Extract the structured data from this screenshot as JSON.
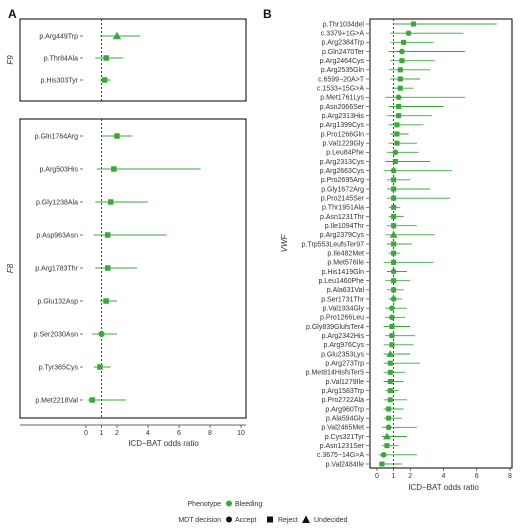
{
  "colors": {
    "accent": "#3aa83a",
    "ref": "#111111",
    "frame": "#000000"
  },
  "legend": {
    "phenotype_title": "Phenotype",
    "phenotype_item": "Bleeding",
    "mdt_title": "MDT decision",
    "accept": "Accept",
    "reject": "Reject",
    "undecided": "Undecided"
  },
  "chart_data": [
    {
      "type": "scatter",
      "panel": "A",
      "xlabel": "ICD−BAT odds ratio",
      "xlim": [
        0,
        10
      ],
      "xticks": [
        0,
        1,
        2,
        4,
        6,
        8,
        10
      ],
      "reference_line": 1,
      "groups": [
        {
          "name": "F9",
          "rows": [
            {
              "label": "p.Arg449Trp",
              "or": 2.0,
              "lo": 0.9,
              "hi": 3.5,
              "decision": "Undecided"
            },
            {
              "label": "p.Thr84Ala",
              "or": 1.3,
              "lo": 0.6,
              "hi": 2.4,
              "decision": "Reject"
            },
            {
              "label": "p.His303Tyr",
              "or": 1.2,
              "lo": 0.9,
              "hi": 1.6,
              "decision": "Reject"
            }
          ]
        },
        {
          "name": "F8",
          "rows": [
            {
              "label": "p.Gln1764Arg",
              "or": 2.0,
              "lo": 1.0,
              "hi": 3.0,
              "decision": "Reject"
            },
            {
              "label": "p.Arg503His",
              "or": 1.8,
              "lo": 0.7,
              "hi": 7.4,
              "decision": "Reject"
            },
            {
              "label": "p.Gly1238Ala",
              "or": 1.6,
              "lo": 0.6,
              "hi": 4.0,
              "decision": "Reject"
            },
            {
              "label": "p.Asp963Asn",
              "or": 1.4,
              "lo": 0.5,
              "hi": 5.2,
              "decision": "Reject"
            },
            {
              "label": "p.Arg1783Thr",
              "or": 1.4,
              "lo": 0.6,
              "hi": 3.3,
              "decision": "Reject"
            },
            {
              "label": "p.Glu132Asp",
              "or": 1.3,
              "lo": 0.9,
              "hi": 2.0,
              "decision": "Reject"
            },
            {
              "label": "p.Ser2030Asn",
              "or": 1.0,
              "lo": 0.4,
              "hi": 2.0,
              "decision": "Accept"
            },
            {
              "label": "p.Tyr365Cys",
              "or": 0.9,
              "lo": 0.5,
              "hi": 1.6,
              "decision": "Reject"
            },
            {
              "label": "p.Met2218Val",
              "or": 0.4,
              "lo": 0.1,
              "hi": 2.6,
              "decision": "Reject"
            }
          ]
        }
      ]
    },
    {
      "type": "scatter",
      "panel": "B",
      "group": "VWF",
      "xlabel": "ICD−BAT odds ratio",
      "xlim": [
        0,
        8
      ],
      "xticks": [
        0,
        1,
        2,
        4,
        6,
        8
      ],
      "reference_line": 1,
      "rows": [
        {
          "label": "p.Thr1034del",
          "or": 2.2,
          "lo": 1.0,
          "hi": 7.2,
          "decision": "Reject"
        },
        {
          "label": "c.3379+1G>A",
          "or": 1.9,
          "lo": 0.8,
          "hi": 5.2,
          "decision": "Accept"
        },
        {
          "label": "p.Arg2384Trp",
          "or": 1.6,
          "lo": 0.8,
          "hi": 3.4,
          "decision": "Reject"
        },
        {
          "label": "p.Gln2470Ter",
          "or": 1.5,
          "lo": 0.7,
          "hi": 5.3,
          "decision": "Accept"
        },
        {
          "label": "p.Arg2464Cys",
          "or": 1.5,
          "lo": 0.8,
          "hi": 3.5,
          "decision": "Reject"
        },
        {
          "label": "p.Arg2535Gln",
          "or": 1.4,
          "lo": 0.7,
          "hi": 3.2,
          "decision": "Reject"
        },
        {
          "label": "c.6599−20A>T",
          "or": 1.4,
          "lo": 0.8,
          "hi": 2.6,
          "decision": "Reject"
        },
        {
          "label": "c.1533+15G>A",
          "or": 1.4,
          "lo": 0.9,
          "hi": 2.2,
          "decision": "Reject"
        },
        {
          "label": "p.Met1761Lys",
          "or": 1.3,
          "lo": 0.5,
          "hi": 5.3,
          "decision": "Accept"
        },
        {
          "label": "p.Asn2066Ser",
          "or": 1.3,
          "lo": 0.7,
          "hi": 4.0,
          "decision": "Reject"
        },
        {
          "label": "p.Arg2313His",
          "or": 1.3,
          "lo": 0.6,
          "hi": 3.3,
          "decision": "Reject"
        },
        {
          "label": "p.Arg1399Cys",
          "or": 1.2,
          "lo": 0.7,
          "hi": 2.8,
          "decision": "Reject"
        },
        {
          "label": "p.Pro1266Gln",
          "or": 1.2,
          "lo": 0.8,
          "hi": 1.9,
          "decision": "Reject"
        },
        {
          "label": "p.Val1229Gly",
          "or": 1.2,
          "lo": 0.7,
          "hi": 2.4,
          "decision": "Reject"
        },
        {
          "label": "p.Leu84Phe",
          "or": 1.1,
          "lo": 0.6,
          "hi": 2.5,
          "decision": "Accept"
        },
        {
          "label": "p.Arg2313Cys",
          "or": 1.1,
          "lo": 0.5,
          "hi": 3.2,
          "decision": "Reject"
        },
        {
          "label": "p.Arg2663Cys",
          "or": 1.0,
          "lo": 0.4,
          "hi": 4.5,
          "decision": "Accept"
        },
        {
          "label": "p.Pro2695Arg",
          "or": 1.0,
          "lo": 0.6,
          "hi": 2.0,
          "decision": "Reject"
        },
        {
          "label": "p.Gly1672Arg",
          "or": 1.0,
          "lo": 0.6,
          "hi": 3.2,
          "decision": "Reject"
        },
        {
          "label": "p.Pro2145Ser",
          "or": 1.0,
          "lo": 0.6,
          "hi": 4.4,
          "decision": "Reject"
        },
        {
          "label": "p.Thr1951Ala",
          "or": 1.0,
          "lo": 0.7,
          "hi": 1.4,
          "decision": "Reject"
        },
        {
          "label": "p.Asn1231Thr",
          "or": 1.0,
          "lo": 0.7,
          "hi": 1.6,
          "decision": "Reject"
        },
        {
          "label": "p.Ile1094Thr",
          "or": 1.0,
          "lo": 0.6,
          "hi": 2.4,
          "decision": "Reject"
        },
        {
          "label": "p.Arg2379Cys",
          "or": 1.0,
          "lo": 0.5,
          "hi": 3.5,
          "decision": "Undecided"
        },
        {
          "label": "p.Trp553LeufsTer97",
          "or": 1.0,
          "lo": 0.6,
          "hi": 2.1,
          "decision": "Reject"
        },
        {
          "label": "p.Ile482Met",
          "or": 1.0,
          "lo": 0.7,
          "hi": 1.4,
          "decision": "Reject"
        },
        {
          "label": "p.Met576Ile",
          "or": 1.0,
          "lo": 0.4,
          "hi": 3.4,
          "decision": "Reject"
        },
        {
          "label": "p.His1419Gln",
          "or": 1.0,
          "lo": 0.6,
          "hi": 1.8,
          "decision": "Accept"
        },
        {
          "label": "p.Leu1460Phe",
          "or": 1.0,
          "lo": 0.5,
          "hi": 2.0,
          "decision": "Reject"
        },
        {
          "label": "p.Ala631Val",
          "or": 1.0,
          "lo": 0.6,
          "hi": 1.6,
          "decision": "Reject"
        },
        {
          "label": "p.Ser1731Thr",
          "or": 1.0,
          "lo": 0.7,
          "hi": 1.5,
          "decision": "Accept"
        },
        {
          "label": "p.Val1934Gly",
          "or": 0.9,
          "lo": 0.5,
          "hi": 1.8,
          "decision": "Accept"
        },
        {
          "label": "p.Pro1266Leu",
          "or": 0.9,
          "lo": 0.5,
          "hi": 1.7,
          "decision": "Accept"
        },
        {
          "label": "p.Gly839GlufsTer4",
          "or": 0.9,
          "lo": 0.4,
          "hi": 2.0,
          "decision": "Reject"
        },
        {
          "label": "p.Arg2342His",
          "or": 0.9,
          "lo": 0.5,
          "hi": 2.3,
          "decision": "Reject"
        },
        {
          "label": "p.Arg976Cys",
          "or": 0.9,
          "lo": 0.4,
          "hi": 2.2,
          "decision": "Reject"
        },
        {
          "label": "p.Glu2353Lys",
          "or": 0.8,
          "lo": 0.4,
          "hi": 2.0,
          "decision": "Undecided"
        },
        {
          "label": "p.Arg273Trp",
          "or": 0.8,
          "lo": 0.4,
          "hi": 2.6,
          "decision": "Reject"
        },
        {
          "label": "p.Met814HisfsTer5",
          "or": 0.8,
          "lo": 0.4,
          "hi": 1.7,
          "decision": "Reject"
        },
        {
          "label": "p.Val1279Ile",
          "or": 0.8,
          "lo": 0.4,
          "hi": 1.6,
          "decision": "Reject"
        },
        {
          "label": "p.Arg1583Trp",
          "or": 0.8,
          "lo": 0.5,
          "hi": 1.3,
          "decision": "Reject"
        },
        {
          "label": "p.Pro2722Ala",
          "or": 0.8,
          "lo": 0.4,
          "hi": 1.8,
          "decision": "Reject"
        },
        {
          "label": "p.Arg960Trp",
          "or": 0.7,
          "lo": 0.4,
          "hi": 1.6,
          "decision": "Reject"
        },
        {
          "label": "p.Ala594Gly",
          "or": 0.7,
          "lo": 0.4,
          "hi": 1.5,
          "decision": "Reject"
        },
        {
          "label": "p.Val2465Met",
          "or": 0.7,
          "lo": 0.3,
          "hi": 2.4,
          "decision": "Accept"
        },
        {
          "label": "p.Cys321Tyr",
          "or": 0.6,
          "lo": 0.3,
          "hi": 1.8,
          "decision": "Undecided"
        },
        {
          "label": "p.Asn1231Ser",
          "or": 0.6,
          "lo": 0.3,
          "hi": 1.3,
          "decision": "Reject"
        },
        {
          "label": "c.3675−14G>A",
          "or": 0.4,
          "lo": 0.1,
          "hi": 2.4,
          "decision": "Accept"
        },
        {
          "label": "p.Val2484Ile",
          "or": 0.3,
          "lo": 0.1,
          "hi": 1.5,
          "decision": "Reject"
        }
      ]
    }
  ]
}
